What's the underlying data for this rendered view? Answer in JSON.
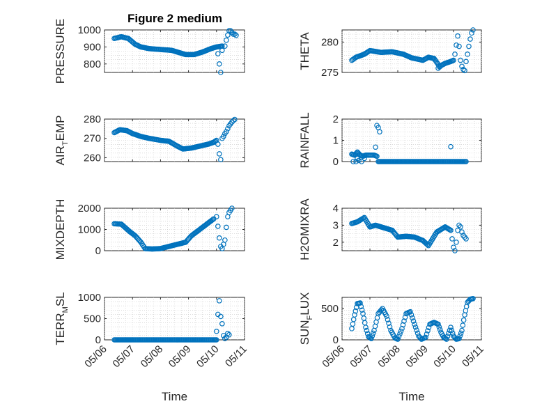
{
  "title": "Figure 2 medium",
  "colors": {
    "marker": "#0072BD",
    "axis": "#262626",
    "grid": "#c8c8c8"
  },
  "chart_data": {
    "type": "scatter",
    "marker": "circle",
    "grid": "on",
    "shared_x": {
      "label": "Time",
      "tick_labels": [
        "05/06",
        "05/07",
        "05/08",
        "05/09",
        "05/10",
        "05/11"
      ],
      "ticks": [
        0,
        1,
        2,
        3,
        4,
        5
      ],
      "xlim": [
        0,
        5
      ],
      "note_units": "days from 05/06"
    },
    "panels": [
      {
        "ylabel_main": "PRESSURE",
        "ylabel_sub": "",
        "ylabel_tail": "",
        "ylim": [
          750,
          1000
        ],
        "yticks": [
          800,
          900,
          1000
        ],
        "key_points": [
          [
            0.35,
            950
          ],
          [
            0.6,
            960
          ],
          [
            0.85,
            950
          ],
          [
            1.1,
            915
          ],
          [
            1.3,
            900
          ],
          [
            1.6,
            890
          ],
          [
            2.0,
            885
          ],
          [
            2.4,
            880
          ],
          [
            2.6,
            870
          ],
          [
            2.9,
            855
          ],
          [
            3.2,
            855
          ],
          [
            3.5,
            870
          ],
          [
            3.8,
            890
          ],
          [
            4.0,
            900
          ],
          [
            4.2,
            905
          ]
        ],
        "tail_points": [
          [
            4.05,
            860
          ],
          [
            4.1,
            800
          ],
          [
            4.15,
            750
          ],
          [
            4.2,
            880
          ],
          [
            4.3,
            905
          ],
          [
            4.35,
            940
          ],
          [
            4.4,
            970
          ],
          [
            4.45,
            995
          ],
          [
            4.5,
            995
          ],
          [
            4.55,
            985
          ],
          [
            4.6,
            975
          ],
          [
            4.65,
            975
          ],
          [
            4.7,
            968
          ]
        ]
      },
      {
        "ylabel_main": "THETA",
        "ylabel_sub": "",
        "ylabel_tail": "",
        "ylim": [
          275,
          282
        ],
        "yticks": [
          275,
          280
        ],
        "key_points": [
          [
            0.35,
            277
          ],
          [
            0.5,
            277.5
          ],
          [
            0.8,
            278
          ],
          [
            1.0,
            278.6
          ],
          [
            1.4,
            278.3
          ],
          [
            1.8,
            278.4
          ],
          [
            2.2,
            278
          ],
          [
            2.5,
            277.4
          ],
          [
            2.9,
            277
          ],
          [
            3.1,
            277.5
          ],
          [
            3.3,
            277.3
          ],
          [
            3.5,
            276
          ],
          [
            3.7,
            276.5
          ],
          [
            3.9,
            276.8
          ],
          [
            4.0,
            277
          ]
        ],
        "tail_points": [
          [
            3.45,
            275.7
          ],
          [
            3.5,
            275.9
          ],
          [
            4.05,
            278
          ],
          [
            4.1,
            279.5
          ],
          [
            4.15,
            281
          ],
          [
            4.2,
            279.3
          ],
          [
            4.25,
            277
          ],
          [
            4.3,
            276
          ],
          [
            4.35,
            275.5
          ],
          [
            4.4,
            275.3
          ],
          [
            4.45,
            276.8
          ],
          [
            4.5,
            278
          ],
          [
            4.55,
            279.3
          ],
          [
            4.6,
            280.5
          ],
          [
            4.65,
            281.5
          ],
          [
            4.7,
            282
          ]
        ]
      },
      {
        "ylabel_main": "AIR",
        "ylabel_sub": "T",
        "ylabel_tail": "EMP",
        "ylim": [
          258,
          280
        ],
        "yticks": [
          260,
          270,
          280
        ],
        "key_points": [
          [
            0.35,
            273
          ],
          [
            0.55,
            274.5
          ],
          [
            0.8,
            274
          ],
          [
            1.0,
            272.5
          ],
          [
            1.3,
            271
          ],
          [
            1.6,
            270
          ],
          [
            2.0,
            269
          ],
          [
            2.3,
            268.5
          ],
          [
            2.6,
            266
          ],
          [
            2.8,
            264.5
          ],
          [
            3.1,
            265
          ],
          [
            3.4,
            266
          ],
          [
            3.7,
            267
          ],
          [
            3.9,
            268
          ],
          [
            4.0,
            269
          ]
        ],
        "tail_points": [
          [
            4.05,
            267
          ],
          [
            4.1,
            262
          ],
          [
            4.15,
            259
          ],
          [
            4.2,
            270
          ],
          [
            4.25,
            271
          ],
          [
            4.3,
            272.5
          ],
          [
            4.35,
            273.5
          ],
          [
            4.4,
            275
          ],
          [
            4.45,
            276.5
          ],
          [
            4.5,
            277.5
          ],
          [
            4.55,
            278.5
          ],
          [
            4.6,
            279.2
          ],
          [
            4.65,
            279.8
          ]
        ]
      },
      {
        "ylabel_main": "RAINFALL",
        "ylabel_sub": "",
        "ylabel_tail": "",
        "ylim": [
          0,
          2
        ],
        "yticks": [
          0,
          1,
          2
        ],
        "key_points": [
          [
            0.35,
            0.35
          ],
          [
            0.45,
            0.3
          ],
          [
            0.55,
            0.45
          ],
          [
            0.65,
            0.3
          ],
          [
            0.75,
            0.25
          ],
          [
            0.85,
            0.3
          ],
          [
            1.0,
            0.3
          ],
          [
            1.15,
            0.3
          ],
          [
            1.25,
            0.25
          ],
          [
            1.3,
            0.0
          ],
          [
            1.6,
            0.0
          ],
          [
            2.5,
            0.0
          ],
          [
            3.5,
            0.0
          ],
          [
            4.0,
            0.0
          ],
          [
            4.45,
            0.0
          ]
        ],
        "tail_points": [
          [
            0.4,
            0.0
          ],
          [
            0.5,
            0.0
          ],
          [
            0.55,
            0.15
          ],
          [
            0.6,
            0.05
          ],
          [
            0.7,
            0.0
          ],
          [
            0.8,
            0.15
          ],
          [
            1.2,
            0.68
          ],
          [
            1.25,
            1.7
          ],
          [
            1.3,
            1.6
          ],
          [
            1.35,
            1.4
          ],
          [
            3.9,
            0.7
          ]
        ]
      },
      {
        "ylabel_main": "MIXDEPTH",
        "ylabel_sub": "",
        "ylabel_tail": "",
        "ylim": [
          0,
          2000
        ],
        "yticks": [
          0,
          1000,
          2000
        ],
        "key_points": [
          [
            0.35,
            1270
          ],
          [
            0.6,
            1250
          ],
          [
            0.9,
            900
          ],
          [
            1.1,
            700
          ],
          [
            1.3,
            400
          ],
          [
            1.45,
            100
          ],
          [
            1.7,
            80
          ],
          [
            2.0,
            100
          ],
          [
            2.3,
            200
          ],
          [
            2.6,
            300
          ],
          [
            2.9,
            400
          ],
          [
            3.1,
            700
          ],
          [
            3.4,
            1000
          ],
          [
            3.7,
            1300
          ],
          [
            3.9,
            1500
          ]
        ],
        "tail_points": [
          [
            4.0,
            1600
          ],
          [
            4.05,
            1150
          ],
          [
            4.1,
            600
          ],
          [
            4.15,
            200
          ],
          [
            4.2,
            100
          ],
          [
            4.25,
            300
          ],
          [
            4.3,
            500
          ],
          [
            4.35,
            1100
          ],
          [
            4.4,
            1600
          ],
          [
            4.45,
            1800
          ],
          [
            4.5,
            1900
          ],
          [
            4.55,
            2000
          ]
        ]
      },
      {
        "ylabel_main": "H2OMIXRA",
        "ylabel_sub": "",
        "ylabel_tail": "",
        "ylim": [
          1.5,
          4
        ],
        "yticks": [
          2,
          3,
          4
        ],
        "key_points": [
          [
            0.35,
            3.1
          ],
          [
            0.55,
            3.2
          ],
          [
            0.8,
            3.45
          ],
          [
            1.0,
            2.9
          ],
          [
            1.2,
            3.0
          ],
          [
            1.5,
            2.85
          ],
          [
            1.8,
            2.7
          ],
          [
            2.0,
            2.3
          ],
          [
            2.3,
            2.35
          ],
          [
            2.6,
            2.3
          ],
          [
            2.9,
            2.1
          ],
          [
            3.1,
            1.8
          ],
          [
            3.4,
            2.6
          ],
          [
            3.7,
            2.9
          ],
          [
            3.9,
            2.7
          ]
        ],
        "tail_points": [
          [
            3.95,
            2.2
          ],
          [
            4.0,
            1.7
          ],
          [
            4.05,
            1.5
          ],
          [
            4.1,
            2.0
          ],
          [
            4.15,
            2.7
          ],
          [
            4.2,
            3.0
          ],
          [
            4.25,
            2.9
          ],
          [
            4.3,
            2.6
          ],
          [
            4.35,
            2.4
          ],
          [
            4.4,
            2.3
          ],
          [
            4.45,
            2.2
          ]
        ]
      },
      {
        "ylabel_main": "TERR",
        "ylabel_sub": "M",
        "ylabel_tail": "SL",
        "ylim": [
          0,
          1000
        ],
        "yticks": [
          0,
          500,
          1000
        ],
        "key_points": [
          [
            0.35,
            0
          ],
          [
            0.7,
            0
          ],
          [
            1.0,
            0
          ],
          [
            1.5,
            0
          ],
          [
            2.0,
            0
          ],
          [
            2.5,
            0
          ],
          [
            3.0,
            0
          ],
          [
            3.5,
            0
          ],
          [
            3.9,
            0
          ],
          [
            4.0,
            0
          ]
        ],
        "tail_points": [
          [
            4.0,
            200
          ],
          [
            4.05,
            600
          ],
          [
            4.1,
            920
          ],
          [
            4.15,
            550
          ],
          [
            4.2,
            380
          ],
          [
            4.25,
            100
          ],
          [
            4.3,
            30
          ],
          [
            4.35,
            60
          ],
          [
            4.4,
            150
          ],
          [
            4.45,
            120
          ]
        ]
      },
      {
        "ylabel_main": "SUN",
        "ylabel_sub": "F",
        "ylabel_tail": "LUX",
        "ylim": [
          0,
          680
        ],
        "yticks": [
          0,
          500
        ],
        "key_points": [
          [
            0.35,
            180
          ],
          [
            0.45,
            400
          ],
          [
            0.55,
            580
          ],
          [
            0.65,
            590
          ],
          [
            0.75,
            420
          ],
          [
            0.85,
            200
          ],
          [
            0.95,
            50
          ],
          [
            1.05,
            20
          ],
          [
            1.15,
            150
          ],
          [
            1.3,
            420
          ],
          [
            1.45,
            500
          ],
          [
            1.6,
            380
          ],
          [
            1.75,
            150
          ],
          [
            1.9,
            30
          ],
          [
            2.0,
            10
          ],
          [
            2.15,
            180
          ],
          [
            2.3,
            420
          ],
          [
            2.45,
            450
          ],
          [
            2.6,
            250
          ],
          [
            2.75,
            60
          ],
          [
            2.85,
            10
          ],
          [
            3.0,
            40
          ],
          [
            3.15,
            250
          ],
          [
            3.3,
            280
          ],
          [
            3.45,
            250
          ],
          [
            3.55,
            120
          ],
          [
            3.65,
            40
          ],
          [
            3.75,
            10
          ],
          [
            3.9,
            200
          ],
          [
            4.0,
            60
          ],
          [
            4.1,
            10
          ],
          [
            4.2,
            20
          ],
          [
            4.3,
            150
          ],
          [
            4.4,
            400
          ],
          [
            4.5,
            600
          ],
          [
            4.6,
            650
          ],
          [
            4.7,
            660
          ]
        ],
        "tail_points": []
      }
    ]
  }
}
